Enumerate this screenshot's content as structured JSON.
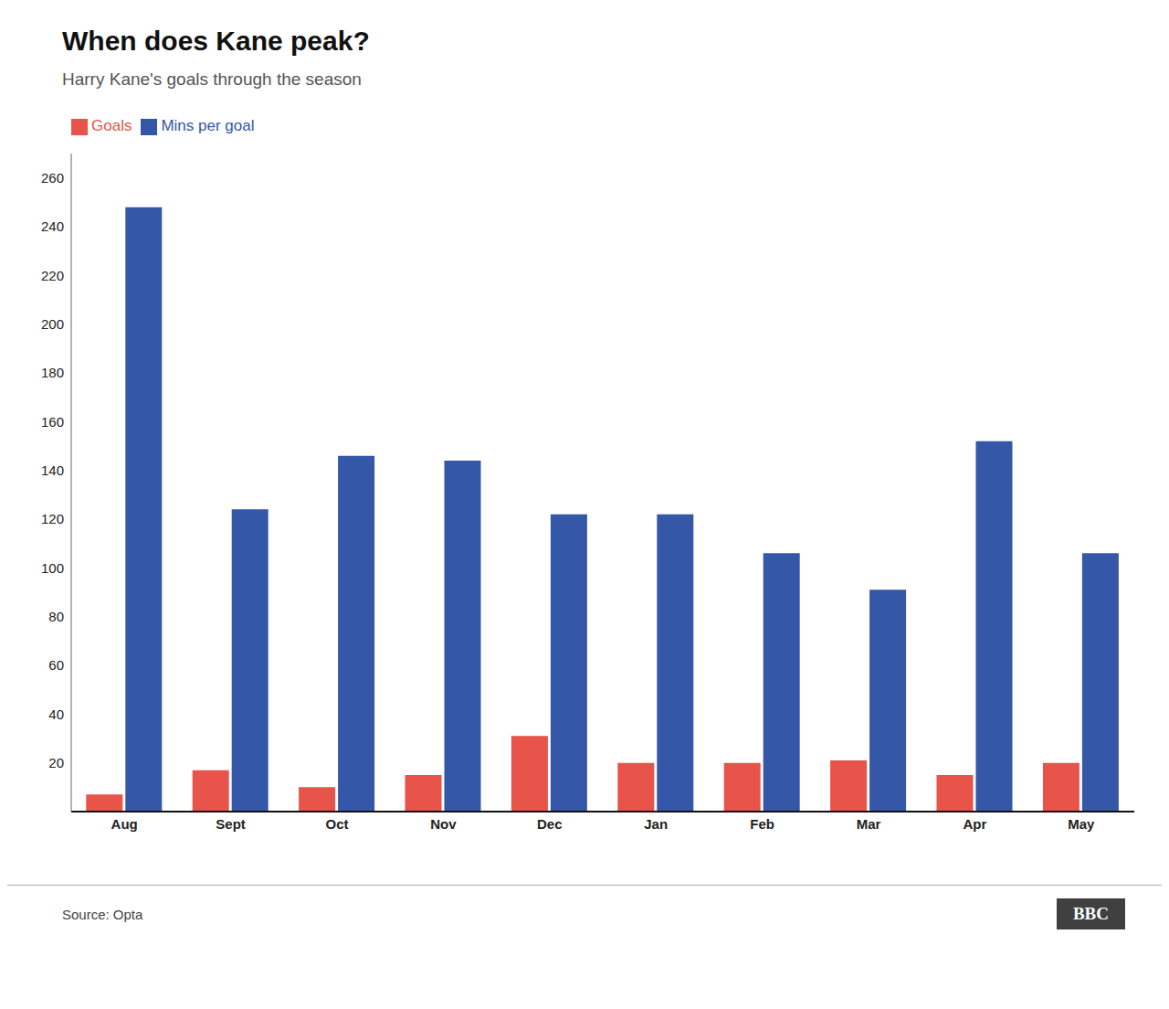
{
  "chart_data": {
    "type": "bar",
    "title": "When does Kane peak?",
    "subtitle": "Harry Kane's goals through the season",
    "categories": [
      "Aug",
      "Sept",
      "Oct",
      "Nov",
      "Dec",
      "Jan",
      "Feb",
      "Mar",
      "Apr",
      "May"
    ],
    "series": [
      {
        "name": "Goals",
        "color": "#E8534A",
        "values": [
          7,
          17,
          10,
          15,
          31,
          20,
          20,
          21,
          15,
          20
        ]
      },
      {
        "name": "Mins per goal",
        "color": "#3557A7",
        "values": [
          248,
          124,
          146,
          144,
          122,
          122,
          106,
          91,
          152,
          106
        ]
      }
    ],
    "ylim": [
      0,
      270
    ],
    "yticks": [
      20,
      40,
      60,
      80,
      100,
      120,
      140,
      160,
      180,
      200,
      220,
      240,
      260
    ],
    "grid": false,
    "legend": "upper left",
    "annotations": [
      "Source: Opta",
      "BBC"
    ]
  }
}
